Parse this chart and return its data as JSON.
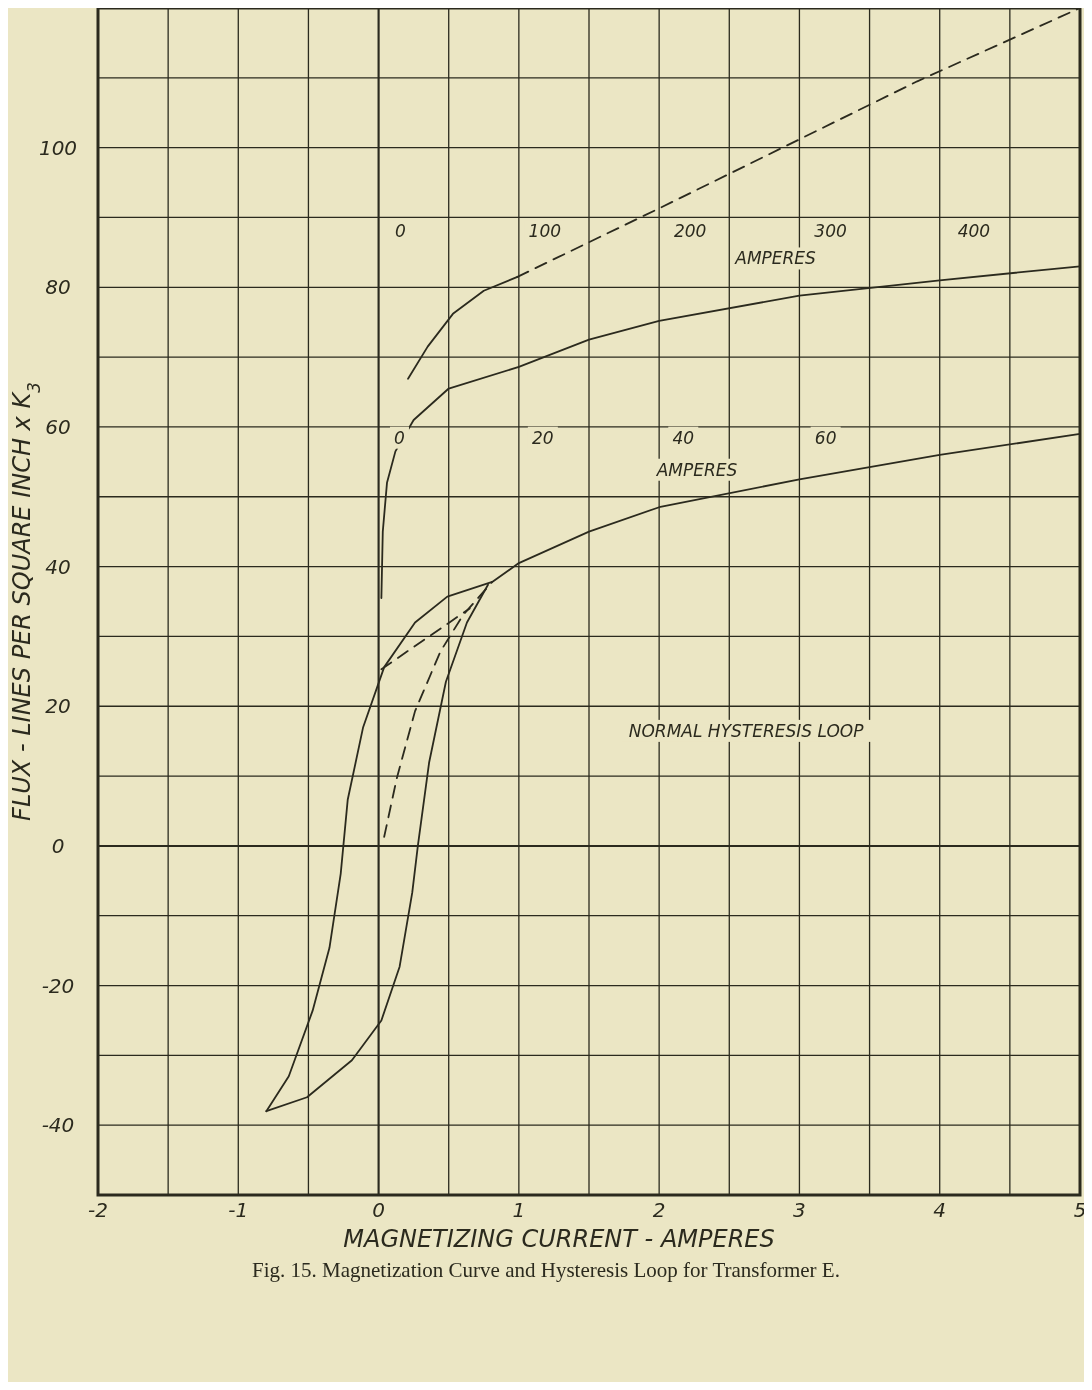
{
  "chart_data": {
    "type": "line",
    "title": "Fig. 15. Magnetization Curve and Hysteresis Loop for Transformer E.",
    "xlabel": "MAGNETIZING CURRENT - AMPERES",
    "ylabel": "FLUX - LINES PER SQUARE INCH x K$_{3}$",
    "xlim": [
      -2,
      5
    ],
    "ylim": [
      -50,
      120
    ],
    "xticks": [
      -2,
      {
        "value": -1.5,
        "label": null
      },
      -1,
      {
        "value": -0.5,
        "label": null
      },
      0,
      {
        "value": 0.5,
        "label": null
      },
      1,
      {
        "value": 1.5,
        "label": null
      },
      2,
      {
        "value": 2.5,
        "label": null
      },
      3,
      {
        "value": 3.5,
        "label": null
      },
      4,
      {
        "value": 4.5,
        "label": null
      },
      5
    ],
    "yticks": [
      {
        "value": -50,
        "label": null
      },
      -40,
      {
        "value": -30,
        "label": null
      },
      -20,
      {
        "value": -10,
        "label": null
      },
      0,
      {
        "value": 10,
        "label": null
      },
      20,
      {
        "value": 30,
        "label": null
      },
      40,
      {
        "value": 50,
        "label": null
      },
      60,
      {
        "value": 70,
        "label": null
      },
      80,
      {
        "value": 90,
        "label": null
      },
      100,
      {
        "value": 110,
        "label": null
      },
      {
        "value": 120,
        "label": null
      }
    ],
    "grid": true,
    "series": [
      {
        "color": "#2b2a1e",
        "line_style": "solid",
        "x": [
          0.21,
          0.35,
          0.53,
          0.75,
          0.99
        ],
        "values": [
          66.9,
          71.5,
          76.2,
          79.5,
          81.5
        ]
      },
      {
        "color": "#2b2a1e",
        "line_style": "dashed",
        "x": [
          0.99,
          2.02,
          3.84,
          5
        ],
        "values": [
          81.5,
          91.5,
          109.5,
          120
        ]
      },
      {
        "color": "#2b2a1e",
        "line_style": "solid",
        "x": [
          0.02,
          0.03,
          0.06,
          0.12,
          0.25,
          0.5,
          1,
          1.5,
          2,
          3,
          4,
          5
        ],
        "values": [
          35.5,
          45,
          52,
          56.5,
          61,
          65.5,
          68.6,
          72.5,
          75.2,
          78.8,
          81,
          83
        ]
      },
      {
        "color": "#2b2a1e",
        "line_style": "solid",
        "x": [
          5,
          4,
          3,
          2,
          1.5,
          1,
          0.81,
          0.49,
          0.26,
          0.04,
          -0.11,
          -0.22,
          -0.27,
          -0.35,
          -0.47,
          -0.64,
          -0.8
        ],
        "values": [
          59,
          56,
          52.5,
          48.5,
          45,
          40.5,
          37.8,
          35.7,
          32,
          25.6,
          17,
          6.6,
          -4,
          -14.6,
          -23.6,
          -33,
          -38
        ]
      },
      {
        "color": "#2b2a1e",
        "line_style": "solid",
        "x": [
          -0.8,
          -0.51,
          -0.19,
          0.02,
          0.15,
          0.24,
          0.28,
          0.36,
          0.48,
          0.63,
          0.78
        ],
        "values": [
          -38,
          -36,
          -30.7,
          -25,
          -17.3,
          -6.7,
          0,
          11.9,
          23.5,
          32,
          37.4
        ]
      },
      {
        "color": "#2b2a1e",
        "line_style": "dashed",
        "x": [
          0.04,
          0.13,
          0.26,
          0.44,
          0.6,
          0.81
        ],
        "values": [
          1.3,
          9.7,
          19.3,
          27.8,
          33,
          37.8
        ]
      },
      {
        "color": "#2b2a1e",
        "line_style": "dashed",
        "x": [
          0.02,
          0.65
        ],
        "values": [
          25.3,
          34
        ]
      }
    ],
    "annotations": [
      "0",
      "100",
      "200",
      "300",
      "400",
      "AMPERES",
      "0",
      "20",
      "40",
      "60",
      "AMPERES",
      "NORMAL HYSTERESIS LOOP"
    ]
  }
}
